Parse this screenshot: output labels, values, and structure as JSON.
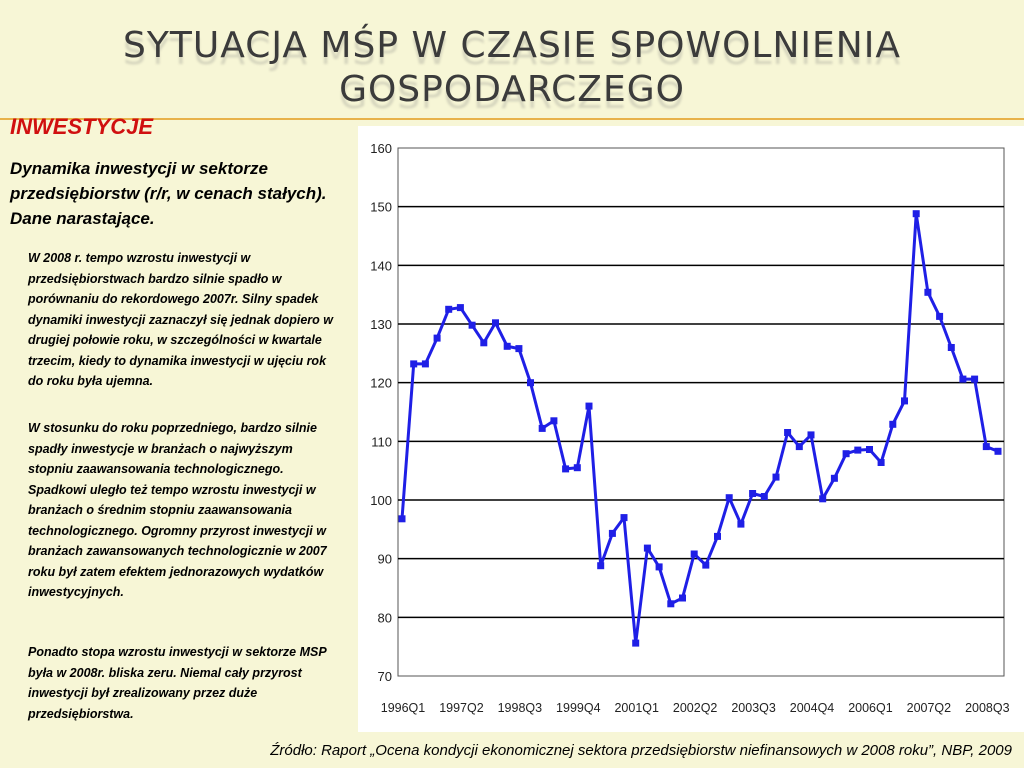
{
  "slide": {
    "title_line1": "Sytuacja MŚP w czasie spowolnienia",
    "title_line2": "gospodarczego",
    "section_heading": "INWESTYCJE",
    "subtitle": "Dynamika inwestycji w sektorze przedsiębiorstw (r/r, w cenach stałych). Dane narastające.",
    "paragraph1": "W 2008 r. tempo wzrostu inwestycji w przedsiębiorstwach bardzo silnie spadło w porównaniu do rekordowego 2007r. Silny spadek dynamiki inwestycji zaznaczył się jednak dopiero w drugiej połowie roku, w szczególności w kwartale trzecim, kiedy to dynamika inwestycji w ujęciu rok do roku była ujemna.",
    "paragraph2": "W stosunku do roku poprzedniego, bardzo silnie spadły inwestycje w branżach o najwyższym stopniu zaawansowania technologicznego. Spadkowi uległo też tempo wzrostu inwestycji w branżach o średnim stopniu zaawansowania technologicznego. Ogromny przyrost inwestycji w branżach zawansowanych technologicznie w 2007 roku był zatem efektem jednorazowych wydatków inwestycyjnych.",
    "paragraph3": "Ponadto stopa wzrostu inwestycji w sektorze MSP była w 2008r. bliska zeru. Niemal cały przyrost inwestycji był zrealizowany przez duże przedsiębiorstwa.",
    "source": "Źródło: Raport „Ocena kondycji ekonomicznej sektora przedsiębiorstw niefinansowych w 2008 roku”, NBP, 2009"
  },
  "colors": {
    "line": "#1f1fe6",
    "accent_rule": "#e8b24a",
    "heading": "#d01010"
  },
  "chart_data": {
    "type": "line",
    "title": "",
    "xlabel": "",
    "ylabel": "",
    "ylim": [
      70,
      160
    ],
    "yticks": [
      70,
      80,
      90,
      100,
      110,
      120,
      130,
      140,
      150,
      160
    ],
    "grid": true,
    "x_tick_labels": [
      "1996Q1",
      "1997Q2",
      "1998Q3",
      "1999Q4",
      "2001Q1",
      "2002Q2",
      "2003Q3",
      "2004Q4",
      "2006Q1",
      "2007Q2",
      "2008Q3"
    ],
    "x_tick_every": 5,
    "series": [
      {
        "values": [
          96.8,
          123.2,
          123.2,
          127.6,
          132.5,
          132.8,
          129.8,
          126.8,
          130.2,
          126.2,
          125.8,
          120.0,
          112.2,
          113.5,
          105.3,
          105.5,
          116.0,
          88.8,
          94.3,
          97.0,
          75.6,
          91.8,
          88.6,
          82.3,
          83.3,
          90.8,
          88.9,
          93.8,
          100.4,
          95.9,
          101.1,
          100.6,
          103.9,
          111.5,
          109.1,
          111.1,
          100.2,
          103.7,
          107.9,
          108.5,
          108.6,
          106.4,
          112.9,
          116.9,
          148.8,
          135.4,
          131.3,
          126.0,
          120.6,
          120.6,
          109.1,
          108.3
        ]
      }
    ]
  }
}
